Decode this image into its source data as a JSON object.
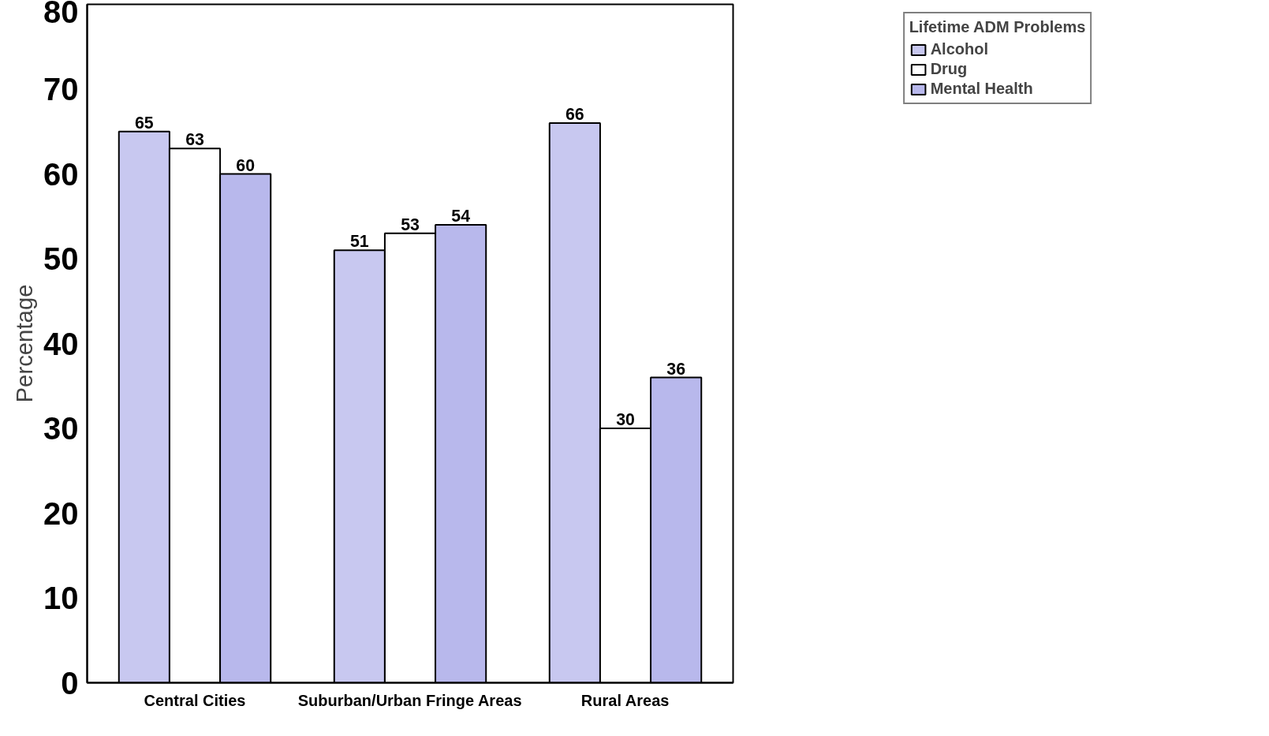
{
  "chart_data": {
    "type": "bar",
    "ylabel": "Percentage",
    "categories": [
      "Central Cities",
      "Suburban/Urban Fringe Areas",
      "Rural Areas"
    ],
    "series": [
      {
        "name": "Alcohol",
        "color": "#c8c8f0",
        "values": [
          65,
          51,
          66
        ]
      },
      {
        "name": "Drug",
        "color": "#ffffff",
        "values": [
          63,
          53,
          30
        ]
      },
      {
        "name": "Mental Health",
        "color": "#b8b8ec",
        "values": [
          60,
          54,
          36
        ]
      }
    ],
    "ylim": [
      0,
      80
    ],
    "yticks": [
      0,
      10,
      20,
      30,
      40,
      50,
      60,
      70,
      80
    ],
    "grid": false,
    "legend": "top right",
    "legend_title": "Lifetime ADM Problems",
    "data_labels": true
  }
}
